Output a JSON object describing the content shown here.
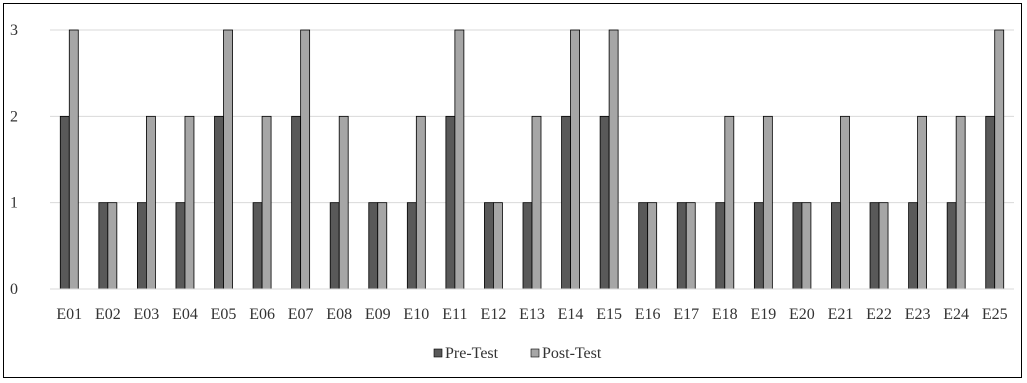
{
  "chart_data": {
    "type": "bar",
    "categories": [
      "E01",
      "E02",
      "E03",
      "E04",
      "E05",
      "E06",
      "E07",
      "E08",
      "E09",
      "E10",
      "E11",
      "E12",
      "E13",
      "E14",
      "E15",
      "E16",
      "E17",
      "E18",
      "E19",
      "E20",
      "E21",
      "E22",
      "E23",
      "E24",
      "E25"
    ],
    "series": [
      {
        "name": "Pre-Test",
        "color": "#595959",
        "values": [
          2,
          1,
          1,
          1,
          2,
          1,
          2,
          1,
          1,
          1,
          2,
          1,
          1,
          2,
          2,
          1,
          1,
          1,
          1,
          1,
          1,
          1,
          1,
          1,
          2
        ]
      },
      {
        "name": "Post-Test",
        "color": "#a6a6a6",
        "values": [
          3,
          1,
          2,
          2,
          3,
          2,
          3,
          2,
          1,
          2,
          3,
          1,
          2,
          3,
          3,
          1,
          1,
          2,
          2,
          1,
          2,
          1,
          2,
          2,
          3
        ]
      }
    ],
    "ylim": [
      0,
      3
    ],
    "yticks": [
      0,
      1,
      2,
      3
    ],
    "grid": true,
    "legend": "bottom-center",
    "title": "",
    "xlabel": "",
    "ylabel": ""
  }
}
